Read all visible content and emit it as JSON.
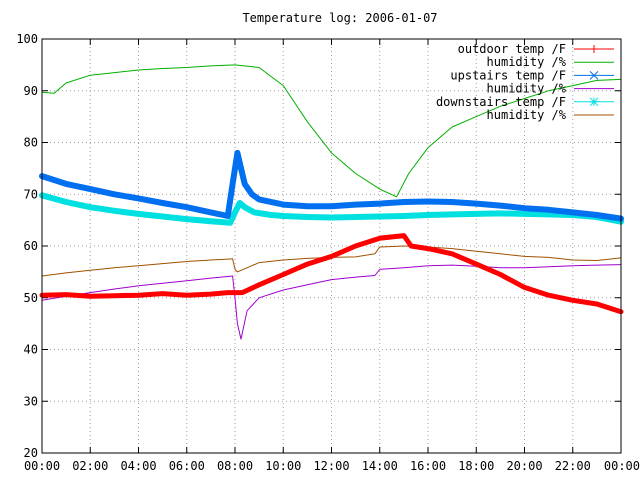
{
  "chart_data": {
    "type": "line",
    "title": "Temperature log: 2006-01-07",
    "xlabel": "",
    "ylabel": "",
    "xlim": [
      0,
      24
    ],
    "ylim": [
      20,
      100
    ],
    "x_ticks": [
      0,
      2,
      4,
      6,
      8,
      10,
      12,
      14,
      16,
      18,
      20,
      22,
      24
    ],
    "x_tick_labels": [
      "00:00",
      "02:00",
      "04:00",
      "06:00",
      "08:00",
      "10:00",
      "12:00",
      "14:00",
      "16:00",
      "18:00",
      "20:00",
      "22:00",
      "00:00"
    ],
    "y_ticks": [
      20,
      30,
      40,
      50,
      60,
      70,
      80,
      90,
      100
    ],
    "y_tick_labels": [
      "20",
      "30",
      "40",
      "50",
      "60",
      "70",
      "80",
      "90",
      "100"
    ],
    "grid": true,
    "legend_position": "top-right",
    "series": [
      {
        "name": "outdoor temp /F",
        "color": "#ff0000",
        "marker": "plus",
        "x": [
          0,
          1,
          2,
          3,
          4,
          5,
          6,
          7,
          7.7,
          8.3,
          9,
          10,
          11,
          12,
          13,
          14,
          15,
          15.3,
          16,
          17,
          18,
          19,
          20,
          21,
          22,
          23,
          24
        ],
        "y": [
          50.5,
          50.6,
          50.3,
          50.4,
          50.5,
          50.8,
          50.5,
          50.7,
          51,
          51,
          52.5,
          54.5,
          56.5,
          58,
          60,
          61.5,
          62,
          60,
          59.5,
          58.5,
          56.5,
          54.5,
          52,
          50.5,
          49.5,
          48.8,
          47.3
        ]
      },
      {
        "name": "humidity /%",
        "color": "#00b000",
        "x": [
          0,
          0.5,
          1,
          2,
          3,
          4,
          5,
          6,
          7,
          8,
          9,
          10,
          11,
          12,
          13,
          14,
          14.7,
          15.2,
          16,
          17,
          18,
          19,
          20,
          21,
          22,
          23,
          24
        ],
        "y": [
          89.7,
          89.5,
          91.5,
          93,
          93.5,
          94,
          94.3,
          94.5,
          94.8,
          95,
          94.5,
          91,
          84,
          78,
          74,
          71,
          69.5,
          74,
          79,
          83,
          85,
          87,
          88.5,
          90,
          91,
          92,
          92.2
        ]
      },
      {
        "name": "upstairs temp /F",
        "color": "#0070f0",
        "marker": "x",
        "x": [
          0,
          1,
          2,
          3,
          4,
          5,
          6,
          7,
          7.7,
          7.9,
          8.1,
          8.2,
          8.4,
          8.7,
          9,
          10,
          11,
          12,
          13,
          14,
          15,
          16,
          17,
          18,
          19,
          20,
          21,
          22,
          23,
          24
        ],
        "y": [
          73.5,
          72,
          71,
          70,
          69.2,
          68.3,
          67.5,
          66.5,
          65.8,
          72,
          78,
          76,
          72,
          70,
          69,
          68,
          67.7,
          67.7,
          68,
          68.2,
          68.5,
          68.6,
          68.5,
          68.2,
          67.8,
          67.3,
          67,
          66.5,
          66,
          65.3
        ]
      },
      {
        "name": "humidity /%",
        "color": "#a000d0",
        "x": [
          0,
          1,
          2,
          3,
          4,
          5,
          6,
          7,
          7.9,
          8.0,
          8.1,
          8.25,
          8.5,
          9,
          10,
          11,
          12,
          13,
          13.8,
          14,
          15,
          16,
          17,
          18,
          19,
          20,
          21,
          22,
          23,
          24
        ],
        "y": [
          49.5,
          50.3,
          51,
          51.7,
          52.3,
          52.8,
          53.3,
          53.8,
          54.2,
          50,
          45,
          42,
          47.5,
          50,
          51.5,
          52.5,
          53.5,
          54,
          54.3,
          55.5,
          55.8,
          56.2,
          56.3,
          56.1,
          55.8,
          55.8,
          56,
          56.2,
          56.3,
          56.4
        ]
      },
      {
        "name": "downstairs temp /F",
        "color": "#00e0e0",
        "marker": "star",
        "x": [
          0,
          1,
          2,
          3,
          4,
          5,
          6,
          7,
          7.8,
          8,
          8.2,
          8.4,
          8.8,
          9.5,
          10,
          11,
          12,
          13,
          14,
          15,
          16,
          17,
          18,
          19,
          20,
          21,
          22,
          23,
          24
        ],
        "y": [
          69.8,
          68.5,
          67.5,
          66.8,
          66.2,
          65.7,
          65.2,
          64.8,
          64.5,
          66.5,
          68.3,
          67.5,
          66.5,
          66,
          65.8,
          65.6,
          65.5,
          65.6,
          65.7,
          65.8,
          66,
          66.1,
          66.2,
          66.3,
          66.2,
          66.1,
          66,
          65.6,
          64.7
        ]
      },
      {
        "name": "humidity /%",
        "color": "#a05000",
        "x": [
          0,
          1,
          2,
          3,
          4,
          5,
          6,
          7,
          7.9,
          8.0,
          8.1,
          8.6,
          9,
          10,
          11,
          12,
          13,
          13.8,
          14,
          15,
          16,
          17,
          18,
          19,
          20,
          21,
          22,
          23,
          24
        ],
        "y": [
          54.2,
          54.8,
          55.3,
          55.8,
          56.2,
          56.6,
          57,
          57.3,
          57.5,
          55.5,
          55,
          56,
          56.8,
          57.3,
          57.6,
          57.8,
          57.9,
          58.5,
          59.8,
          60,
          59.8,
          59.5,
          59,
          58.5,
          58,
          57.8,
          57.3,
          57.2,
          57.7
        ]
      }
    ]
  }
}
